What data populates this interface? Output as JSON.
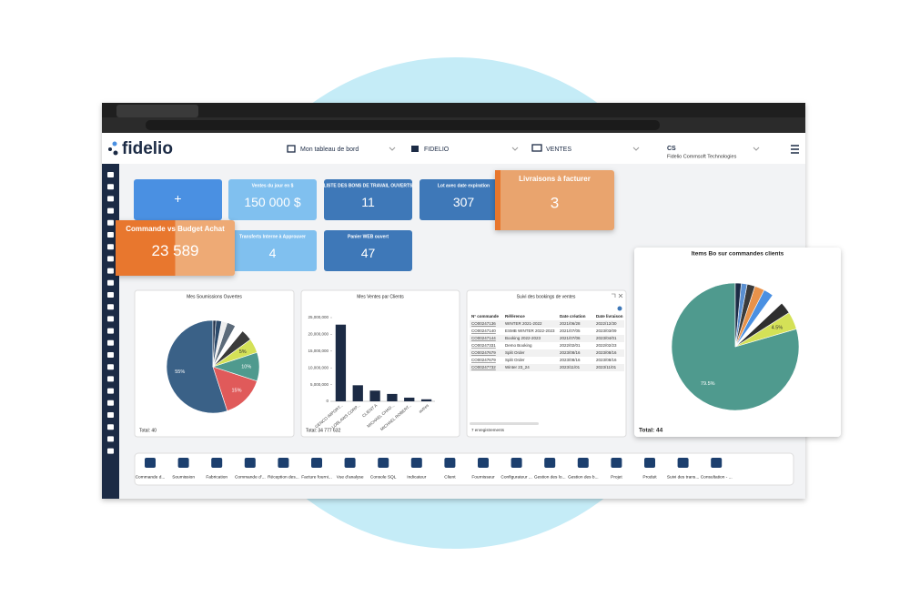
{
  "header": {
    "logo": "fidelio",
    "dashboard": "Mon tableau de bord",
    "company": "FIDELIO",
    "module": "VENTES",
    "user": "CS",
    "user_company": "Fidelio Commsoft Technologies"
  },
  "tiles": [
    {
      "value": "+"
    },
    {
      "title": "Ventes du jour en $",
      "value": "150 000 $"
    },
    {
      "title": "LISTE DES BONS DE TRAVAIL OUVERTS",
      "value": "11"
    },
    {
      "title": "Lot avec date expiration",
      "value": "307"
    },
    {
      "title": "Livraisons à facturer",
      "value": "3"
    },
    {
      "title": "Commande vs Budget Achat",
      "value": "23 589"
    },
    {
      "title": "Transferts Interne à Approuver",
      "value": "4"
    },
    {
      "title": "Panier WEB ouvert",
      "value": "47"
    }
  ],
  "chart_data": [
    {
      "type": "pie",
      "title": "Mes Soumissions Ouvertes",
      "values": [
        55,
        15,
        10,
        5,
        4,
        3,
        3,
        2,
        2,
        1
      ],
      "value_labels": [
        "55%",
        "15%",
        "10%",
        "5%",
        null,
        null,
        null,
        null,
        null,
        null
      ],
      "colors": [
        "#3a6187",
        "#e05a5a",
        "#4f9a8e",
        "#d4e157",
        "#3b3b3b",
        "#ffffff",
        "#5c6b7a",
        "#eeeeee",
        "#2c4a6b",
        "#1c2b45"
      ],
      "total": "Total: 40"
    },
    {
      "type": "bar",
      "title": "Mes Ventes par Clients",
      "categories": [
        "GENCO IMPORT...",
        "LOBLAWS CORP...",
        "CLIENT A",
        "MICHAEL CHAD...",
        "MICHAEL ROBERT...",
        "autres"
      ],
      "values": [
        22900000,
        4800000,
        3200000,
        2200000,
        1100000,
        600000
      ],
      "color": "#1c2b45",
      "ylim": [
        0,
        25000000
      ],
      "yticks": [
        0,
        {
          "value": 5000000,
          "label": "5,000,000"
        },
        {
          "value": 10000000,
          "label": "10,000,000"
        },
        {
          "value": 15000000,
          "label": "15,000,000"
        },
        {
          "value": 20000000,
          "label": "20,000,000"
        },
        {
          "value": 25000000,
          "label": "25,000,000"
        }
      ],
      "total": "Total: 34 777 632"
    },
    {
      "type": "pie",
      "title": "Items Bo sur commandes clients",
      "values": [
        79.5,
        4.5,
        3,
        3,
        2.5,
        2.5,
        2,
        1.5,
        1.5
      ],
      "value_labels": [
        "79.5%",
        "4.5%",
        null,
        null,
        null,
        null,
        null,
        null,
        null
      ],
      "colors": [
        "#4f9a8e",
        "#d4e157",
        "#2f2f2f",
        "#ffffff",
        "#4a90e2",
        "#e8924a",
        "#3b3b3b",
        "#5a8fd0",
        "#1c2b45"
      ],
      "total": "Total: 44"
    }
  ],
  "bookings": {
    "title": "Suivi des bookings de ventes",
    "columns": [
      "N° commande",
      "Référence",
      "Date création",
      "Date livraison"
    ],
    "rows": [
      [
        "CO00247136",
        "WINTER 2021-2022",
        "2021/06/28",
        "2022/12/30"
      ],
      [
        "CO00247140",
        "ESMB WINTER 2022-2023",
        "2021/07/05",
        "2023/03/09"
      ],
      [
        "CO00247144",
        "Booking 2022-2023",
        "2021/07/06",
        "2023/04/01"
      ],
      [
        "CO00247331",
        "Demo Booking",
        "2022/02/01",
        "2022/02/23"
      ],
      [
        "CO00247679",
        "Split Order",
        "2023/08/16",
        "2023/08/16"
      ],
      [
        "CO00247679",
        "Split Order",
        "2023/08/16",
        "2023/08/16"
      ],
      [
        "CO00247732",
        "Winter 23_24",
        "2023/11/01",
        "2023/11/01"
      ]
    ],
    "footer": "7 enregistrements"
  },
  "toolbar": [
    "Commande d...",
    "Soumission",
    "Fabrication",
    "Commande d'...",
    "Réception des...",
    "Facture fourni...",
    "Vue d'analyse",
    "Console SQL",
    "Indicateur",
    "Client",
    "Fournisseur",
    "Configurateur ...",
    "Gestion des lo...",
    "Gestion des b...",
    "Projet",
    "Produit",
    "Suivi des trans...",
    "Consultation - ..."
  ]
}
